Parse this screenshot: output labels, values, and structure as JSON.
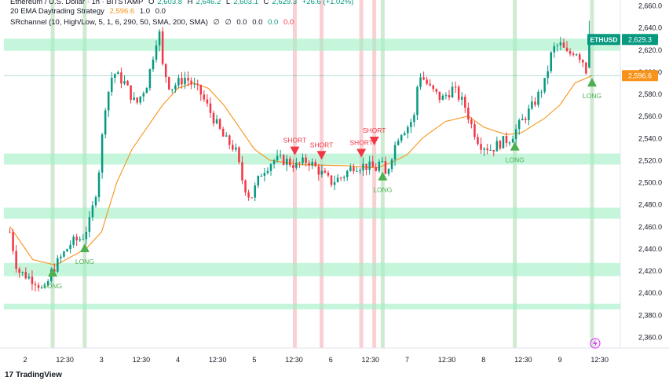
{
  "header": {
    "symbol_line": "Ethereum / U.S. Dollar · 1h · BITSTAMP",
    "o_label": "O",
    "o_value": "2,603.8",
    "h_label": "H",
    "h_value": "2,646.2",
    "l_label": "L",
    "l_value": "2,603.1",
    "c_label": "C",
    "c_value": "2,629.3",
    "change": "+26.6 (+1.02%)",
    "ema_line": "20 EMA Daytrading Strategy",
    "ema_value": "2,596.6",
    "ema_extra": "1.0",
    "ema_extra2": "0.0",
    "sr_line": "SRchannel (10, High/Low, 5, 1, 6, 290, 50, SMA, 200, SMA)",
    "sr_values": [
      "∅",
      "∅",
      "0.0",
      "0.0",
      "0.0",
      "0.0"
    ]
  },
  "price_tags": {
    "symbol_tag": "ETHUSD",
    "last_price": "2,629.3",
    "ema_price": "2,596.6"
  },
  "branding": {
    "name": "TradingView",
    "mark": "17"
  },
  "colors": {
    "up": "#089981",
    "down": "#f23645",
    "ema": "#f7931a",
    "zone": "#9ff0c4",
    "long_bar": "#c8e6c9",
    "short_bar": "#f8c8cc",
    "long_arrow": "#4caf50",
    "short_arrow": "#f23645"
  },
  "chart_data": {
    "type": "candlestick",
    "symbol": "ETHUSD",
    "ylim": [
      2350,
      2665
    ],
    "y_ticks": [
      2360,
      2380,
      2400,
      2420,
      2440,
      2460,
      2480,
      2500,
      2520,
      2540,
      2560,
      2580,
      2600,
      2620,
      2640,
      2660
    ],
    "y_tick_labels": [
      "2,360.0",
      "2,380.0",
      "2,400.0",
      "2,420.0",
      "2,440.0",
      "2,460.0",
      "2,480.0",
      "2,500.0",
      "2,520.0",
      "2,540.0",
      "2,560.0",
      "2,580.0",
      "2,600.0",
      "2,620.0",
      "2,640.0",
      "2,660.0"
    ],
    "x_tick_labels": [
      {
        "label": "2",
        "day": 0
      },
      {
        "label": "12:30",
        "day": 0.52
      },
      {
        "label": "3",
        "day": 1
      },
      {
        "label": "12:30",
        "day": 1.52
      },
      {
        "label": "4",
        "day": 2
      },
      {
        "label": "12:30",
        "day": 2.52
      },
      {
        "label": "5",
        "day": 3
      },
      {
        "label": "12:30",
        "day": 3.52
      },
      {
        "label": "6",
        "day": 4
      },
      {
        "label": "12:30",
        "day": 4.52
      },
      {
        "label": "7",
        "day": 5
      },
      {
        "label": "12:30",
        "day": 5.52
      },
      {
        "label": "8",
        "day": 6
      },
      {
        "label": "12:30",
        "day": 6.52
      },
      {
        "label": "9",
        "day": 7
      },
      {
        "label": "12:30",
        "day": 7.52
      }
    ],
    "sr_zones": [
      [
        2619,
        2630
      ],
      [
        2516,
        2526
      ],
      [
        2467,
        2477
      ],
      [
        2415,
        2427
      ],
      [
        2385,
        2390
      ]
    ],
    "key_points": [
      [
        -0.2,
        2455
      ],
      [
        -0.1,
        2420
      ],
      [
        0.15,
        2410
      ],
      [
        0.25,
        2400
      ],
      [
        0.35,
        2420
      ],
      [
        0.5,
        2435
      ],
      [
        0.6,
        2445
      ],
      [
        0.75,
        2450
      ],
      [
        0.85,
        2465
      ],
      [
        0.95,
        2500
      ],
      [
        1.05,
        2570
      ],
      [
        1.15,
        2600
      ],
      [
        1.3,
        2590
      ],
      [
        1.45,
        2570
      ],
      [
        1.6,
        2590
      ],
      [
        1.75,
        2640
      ],
      [
        1.8,
        2605
      ],
      [
        1.9,
        2585
      ],
      [
        2.1,
        2595
      ],
      [
        2.3,
        2580
      ],
      [
        2.45,
        2560
      ],
      [
        2.6,
        2540
      ],
      [
        2.75,
        2530
      ],
      [
        2.85,
        2500
      ],
      [
        2.95,
        2485
      ],
      [
        3.1,
        2510
      ],
      [
        3.25,
        2520
      ],
      [
        3.4,
        2520
      ],
      [
        3.55,
        2515
      ],
      [
        3.7,
        2520
      ],
      [
        3.85,
        2510
      ],
      [
        4.0,
        2500
      ],
      [
        4.15,
        2505
      ],
      [
        4.3,
        2515
      ],
      [
        4.45,
        2515
      ],
      [
        4.6,
        2512
      ],
      [
        4.65,
        2520
      ],
      [
        4.72,
        2505
      ],
      [
        4.8,
        2525
      ],
      [
        4.9,
        2545
      ],
      [
        5.0,
        2550
      ],
      [
        5.1,
        2560
      ],
      [
        5.15,
        2600
      ],
      [
        5.3,
        2585
      ],
      [
        5.45,
        2575
      ],
      [
        5.6,
        2585
      ],
      [
        5.75,
        2570
      ],
      [
        5.85,
        2550
      ],
      [
        5.95,
        2535
      ],
      [
        6.1,
        2530
      ],
      [
        6.2,
        2535
      ],
      [
        6.35,
        2540
      ],
      [
        6.5,
        2555
      ],
      [
        6.65,
        2570
      ],
      [
        6.8,
        2590
      ],
      [
        6.9,
        2620
      ],
      [
        7.0,
        2625
      ],
      [
        7.1,
        2615
      ],
      [
        7.2,
        2620
      ],
      [
        7.3,
        2610
      ],
      [
        7.35,
        2600
      ],
      [
        7.42,
        2629.3
      ]
    ],
    "ema_series": [
      [
        -0.2,
        2460
      ],
      [
        0.1,
        2430
      ],
      [
        0.4,
        2425
      ],
      [
        0.8,
        2440
      ],
      [
        1.0,
        2455
      ],
      [
        1.2,
        2500
      ],
      [
        1.4,
        2530
      ],
      [
        1.6,
        2550
      ],
      [
        1.8,
        2570
      ],
      [
        2.0,
        2585
      ],
      [
        2.2,
        2590
      ],
      [
        2.4,
        2585
      ],
      [
        2.6,
        2570
      ],
      [
        2.8,
        2550
      ],
      [
        3.0,
        2530
      ],
      [
        3.2,
        2520
      ],
      [
        3.6,
        2516
      ],
      [
        4.2,
        2515
      ],
      [
        4.6,
        2513
      ],
      [
        4.8,
        2518
      ],
      [
        5.0,
        2525
      ],
      [
        5.2,
        2540
      ],
      [
        5.5,
        2555
      ],
      [
        5.8,
        2560
      ],
      [
        6.0,
        2550
      ],
      [
        6.3,
        2543
      ],
      [
        6.5,
        2545
      ],
      [
        6.8,
        2558
      ],
      [
        7.0,
        2570
      ],
      [
        7.2,
        2590
      ],
      [
        7.42,
        2596.6
      ]
    ],
    "signals": [
      {
        "type": "LONG",
        "day": 0.36,
        "price": 2419
      },
      {
        "type": "LONG",
        "day": 0.78,
        "price": 2441
      },
      {
        "type": "SHORT",
        "day": 3.53,
        "price": 2528
      },
      {
        "type": "SHORT",
        "day": 3.88,
        "price": 2524
      },
      {
        "type": "SHORT",
        "day": 4.4,
        "price": 2526
      },
      {
        "type": "SHORT",
        "day": 4.57,
        "price": 2537
      },
      {
        "type": "LONG",
        "day": 4.68,
        "price": 2506
      },
      {
        "type": "LONG",
        "day": 6.41,
        "price": 2533
      },
      {
        "type": "LONG",
        "day": 7.42,
        "price": 2591
      }
    ],
    "signal_bars": [
      {
        "type": "LONG",
        "day": 0.36
      },
      {
        "type": "LONG",
        "day": 0.78
      },
      {
        "type": "SHORT",
        "day": 3.53
      },
      {
        "type": "SHORT",
        "day": 3.88
      },
      {
        "type": "SHORT",
        "day": 4.4
      },
      {
        "type": "SHORT",
        "day": 4.57
      },
      {
        "type": "LONG",
        "day": 4.68
      },
      {
        "type": "LONG",
        "day": 6.41
      },
      {
        "type": "LONG",
        "day": 7.42
      }
    ]
  }
}
